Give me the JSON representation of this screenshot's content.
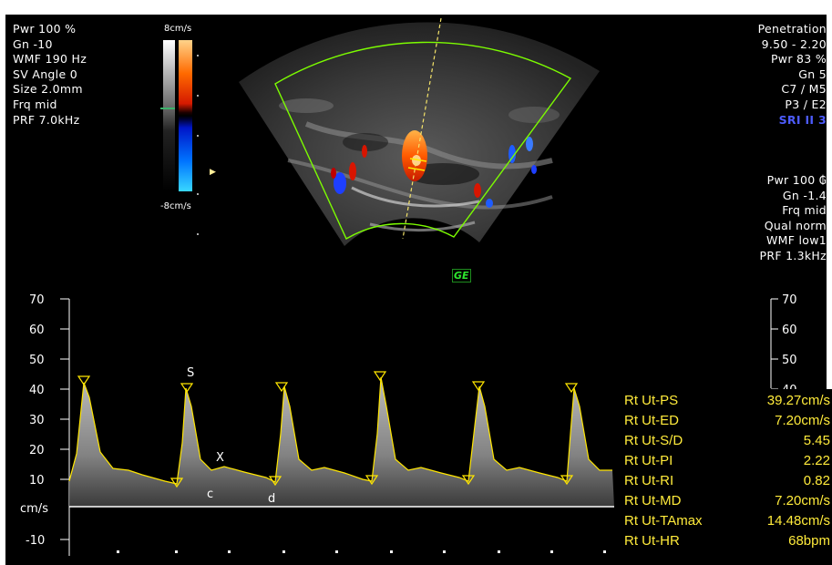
{
  "params_left": [
    "Pwr 100 %",
    "Gn -10",
    "WMF 190 Hz",
    "SV Angle  0",
    "Size  2.0mm",
    "Frq mid",
    "PRF  7.0kHz"
  ],
  "params_right_top": [
    "Penetration",
    "9.50 - 2.20",
    "Pwr  83 %",
    "Gn  5",
    "C7 / M5",
    "P3 / E2",
    "SRI II 3"
  ],
  "params_right_bottom": [
    "Pwr 100 ₲",
    "Gn -1.4",
    "Frq mid",
    "Qual norm",
    "WMF low1",
    "PRF  1.3kHz"
  ],
  "color_scale": {
    "top": "8cm/s",
    "bottom": "-8cm/s"
  },
  "logo": "GE",
  "axis": {
    "left_ticks": [
      "70",
      "60",
      "50",
      "40",
      "30",
      "20",
      "10",
      "-10"
    ],
    "right_ticks": [
      "70",
      "60",
      "50",
      "40"
    ],
    "unit": "cm/s"
  },
  "annotations": {
    "s": "S",
    "x": "X",
    "c": "c",
    "d": "d"
  },
  "measurements": [
    {
      "label": "Rt Ut-PS",
      "value": "39.27cm/s"
    },
    {
      "label": "Rt Ut-ED",
      "value": "7.20cm/s"
    },
    {
      "label": "Rt Ut-S/D",
      "value": "5.45"
    },
    {
      "label": "Rt Ut-PI",
      "value": "2.22"
    },
    {
      "label": "Rt Ut-RI",
      "value": "0.82"
    },
    {
      "label": "Rt Ut-MD",
      "value": "7.20cm/s"
    },
    {
      "label": "Rt Ut-TAmax",
      "value": "14.48cm/s"
    },
    {
      "label": "Rt Ut-HR",
      "value": "68bpm"
    }
  ],
  "colors": {
    "measurement_text": "#ffeb3b",
    "trace": "#ffe600",
    "sector_outline": "#7CFC00",
    "sri_label": "#4d5cff"
  }
}
